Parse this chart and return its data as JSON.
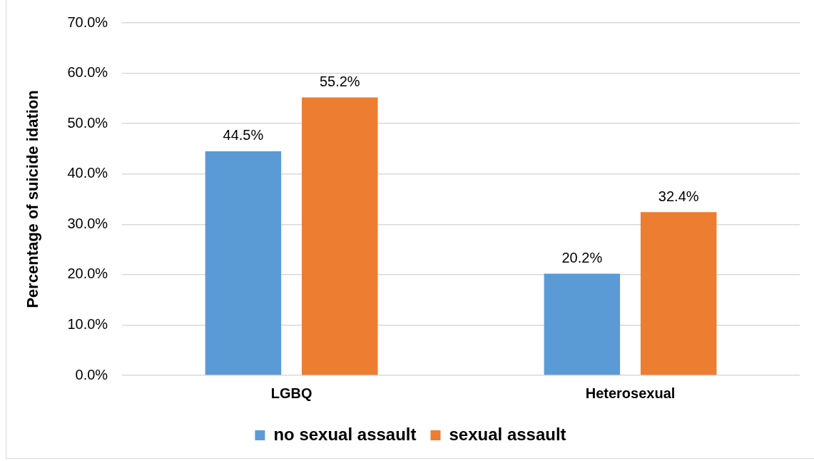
{
  "chart_data": {
    "type": "bar",
    "ylabel": "Percentage of suicide idation",
    "categories": [
      "LGBQ",
      "Heterosexual"
    ],
    "series": [
      {
        "name": "no sexual assault",
        "color": "#5b9bd5",
        "values": [
          44.5,
          20.2
        ],
        "value_labels": [
          "44.5%",
          "20.2%"
        ]
      },
      {
        "name": "sexual assault",
        "color": "#ed7d31",
        "values": [
          55.2,
          32.4
        ],
        "value_labels": [
          "55.2%",
          "32.4%"
        ]
      }
    ],
    "ylim": [
      0,
      70
    ],
    "yticks": [
      {
        "value": 0,
        "label": "0.0%"
      },
      {
        "value": 10,
        "label": "10.0%"
      },
      {
        "value": 20,
        "label": "20.0%"
      },
      {
        "value": 30,
        "label": "30.0%"
      },
      {
        "value": 40,
        "label": "40.0%"
      },
      {
        "value": 50,
        "label": "50.0%"
      },
      {
        "value": 60,
        "label": "60.0%"
      },
      {
        "value": 70,
        "label": "70.0%"
      }
    ],
    "grid": "y",
    "legend": "bottom"
  }
}
